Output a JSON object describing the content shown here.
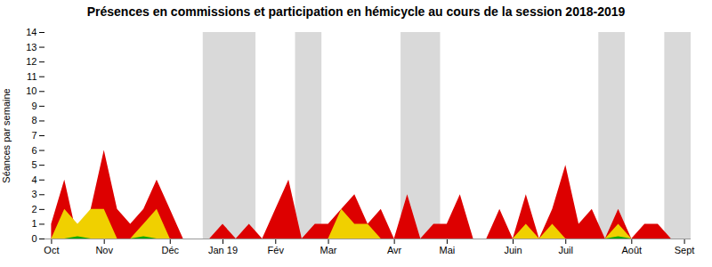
{
  "chart_data": {
    "type": "area",
    "title": "Présences en commissions et participation en hémicycle au cours de la session 2018-2019",
    "ylabel": "Séances par semaine",
    "categories": [
      "Oct",
      null,
      null,
      null,
      "Nov",
      null,
      null,
      null,
      null,
      "Déc",
      null,
      null,
      null,
      "Jan 19",
      null,
      null,
      null,
      "Fév",
      null,
      null,
      null,
      "Mar",
      null,
      null,
      null,
      null,
      "Avr",
      null,
      null,
      null,
      "Mai",
      null,
      null,
      null,
      null,
      "Juin",
      null,
      null,
      null,
      "Juil",
      null,
      null,
      null,
      null,
      "Août",
      null,
      null,
      null,
      "Sept"
    ],
    "series": [
      {
        "color": "#dd0000",
        "values": [
          1,
          4,
          0,
          2,
          6,
          2,
          1,
          2,
          4,
          2,
          0,
          0,
          0,
          1,
          0,
          1,
          0,
          2,
          4,
          0,
          1,
          1,
          2,
          3,
          1,
          2,
          0,
          3,
          0,
          1,
          1,
          3,
          0,
          0,
          2,
          0,
          3,
          0,
          2,
          5,
          1,
          2,
          0,
          2,
          0,
          1,
          1,
          0,
          0
        ]
      },
      {
        "color": "#f0d000",
        "values": [
          0,
          2,
          1,
          2,
          2,
          0,
          0,
          1,
          2,
          0,
          0,
          0,
          0,
          0,
          0,
          0,
          0,
          0,
          0,
          0,
          0,
          0,
          2,
          1,
          1,
          0,
          0,
          0,
          0,
          0,
          0,
          0,
          0,
          0,
          0,
          0,
          1,
          0,
          1,
          0,
          0,
          0,
          0,
          1,
          0,
          0,
          0,
          0,
          0
        ]
      },
      {
        "color": "#00aa00",
        "values": [
          0,
          0,
          0.15,
          0,
          0,
          0,
          0,
          0.15,
          0,
          0,
          0,
          0,
          0,
          0,
          0,
          0,
          0,
          0,
          0,
          0,
          0,
          0,
          0,
          0,
          0,
          0,
          0,
          0,
          0,
          0,
          0,
          0,
          0,
          0,
          0,
          0,
          0,
          0,
          0,
          0,
          0,
          0,
          0,
          0.15,
          0,
          0,
          0,
          0,
          0
        ]
      }
    ],
    "bands": {
      "color": "#aaaaaa",
      "ranges": [
        [
          11.5,
          15.5
        ],
        [
          18.5,
          20.5
        ],
        [
          26.5,
          29.5
        ],
        [
          41.5,
          43.5
        ],
        [
          46.5,
          48.5
        ]
      ]
    },
    "ylim": [
      0,
      14
    ],
    "yticks": [
      0,
      1,
      2,
      3,
      4,
      5,
      6,
      7,
      8,
      9,
      10,
      11,
      12,
      13,
      14
    ],
    "grid": false
  }
}
